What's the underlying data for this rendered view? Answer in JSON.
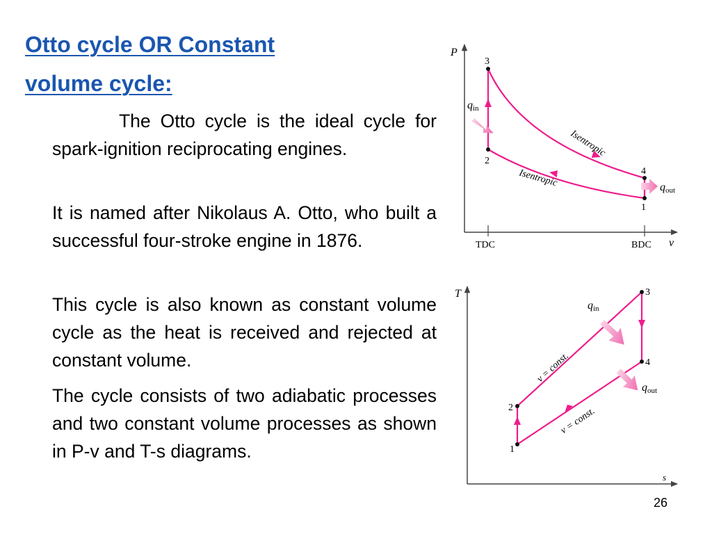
{
  "slide": {
    "title_line1": "Otto cycle OR Constant",
    "title_line2": "volume cycle:",
    "paragraphs": [
      "The Otto cycle is the ideal cycle for spark-ignition reciprocating engines.",
      "It is named after Nikolaus A. Otto, who built a successful four-stroke engine in 1876.",
      "This cycle is also known as constant volume cycle as the heat is received and rejected at constant volume.",
      "The cycle consists of two adiabatic processes and two constant volume processes as shown in P-v and T-s diagrams."
    ],
    "page_number": "26"
  },
  "pv_diagram": {
    "y_axis": "P",
    "x_axis": "v",
    "x_ticks": [
      "TDC",
      "BDC"
    ],
    "points": [
      "1",
      "2",
      "3",
      "4"
    ],
    "upper_curve": "Isentropic",
    "lower_curve": "Isentropic",
    "heat_in": "q",
    "heat_in_sub": "in",
    "heat_out": "q",
    "heat_out_sub": "out"
  },
  "ts_diagram": {
    "y_axis": "T",
    "x_axis": "s",
    "points": [
      "1",
      "2",
      "3",
      "4"
    ],
    "upper_line": "v = const.",
    "lower_line": "v = const.",
    "heat_in": "q",
    "heat_in_sub": "in",
    "heat_out": "q",
    "heat_out_sub": "out"
  },
  "colors": {
    "title": "#1a56b0",
    "cycle_line": "#ee1d8c",
    "heat_arrow": "#f49ac1"
  }
}
